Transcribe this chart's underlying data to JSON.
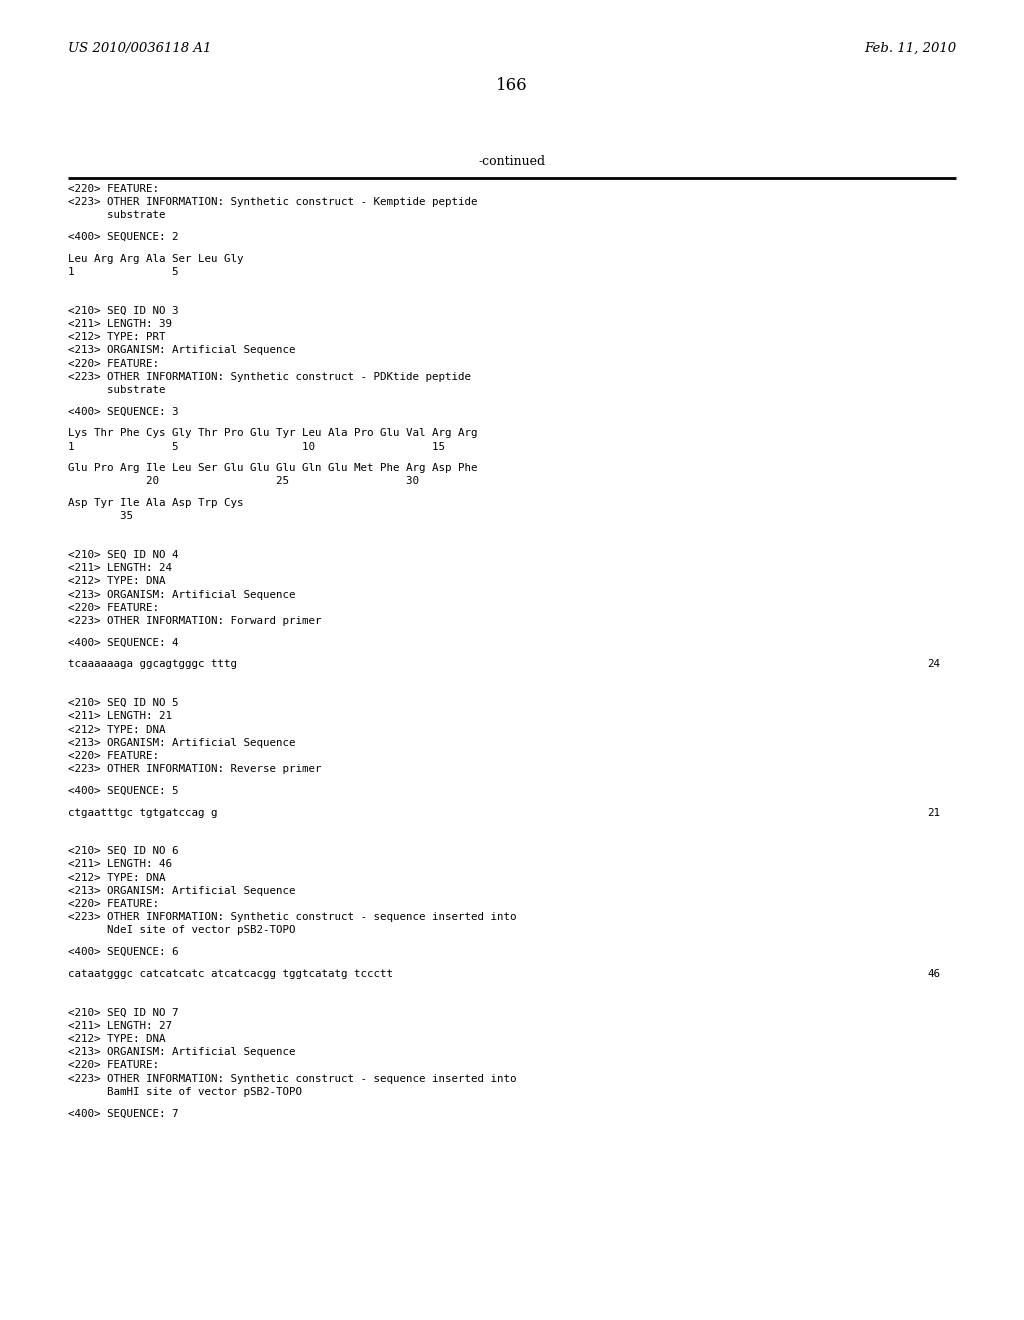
{
  "header_left": "US 2010/0036118 A1",
  "header_right": "Feb. 11, 2010",
  "page_number": "166",
  "continued_label": "-continued",
  "background_color": "#ffffff",
  "text_color": "#000000",
  "content_lines": [
    {
      "type": "mono",
      "text": "<220> FEATURE:"
    },
    {
      "type": "mono",
      "text": "<223> OTHER INFORMATION: Synthetic construct - Kemptide peptide"
    },
    {
      "type": "mono",
      "text": "      substrate"
    },
    {
      "type": "blank"
    },
    {
      "type": "mono",
      "text": "<400> SEQUENCE: 2"
    },
    {
      "type": "blank"
    },
    {
      "type": "mono",
      "text": "Leu Arg Arg Ala Ser Leu Gly"
    },
    {
      "type": "mono",
      "text": "1               5"
    },
    {
      "type": "blank"
    },
    {
      "type": "blank"
    },
    {
      "type": "blank"
    },
    {
      "type": "mono",
      "text": "<210> SEQ ID NO 3"
    },
    {
      "type": "mono",
      "text": "<211> LENGTH: 39"
    },
    {
      "type": "mono",
      "text": "<212> TYPE: PRT"
    },
    {
      "type": "mono",
      "text": "<213> ORGANISM: Artificial Sequence"
    },
    {
      "type": "mono",
      "text": "<220> FEATURE:"
    },
    {
      "type": "mono",
      "text": "<223> OTHER INFORMATION: Synthetic construct - PDKtide peptide"
    },
    {
      "type": "mono",
      "text": "      substrate"
    },
    {
      "type": "blank"
    },
    {
      "type": "mono",
      "text": "<400> SEQUENCE: 3"
    },
    {
      "type": "blank"
    },
    {
      "type": "mono",
      "text": "Lys Thr Phe Cys Gly Thr Pro Glu Tyr Leu Ala Pro Glu Val Arg Arg"
    },
    {
      "type": "mono",
      "text": "1               5                   10                  15"
    },
    {
      "type": "blank"
    },
    {
      "type": "mono",
      "text": "Glu Pro Arg Ile Leu Ser Glu Glu Glu Gln Glu Met Phe Arg Asp Phe"
    },
    {
      "type": "mono",
      "text": "            20                  25                  30"
    },
    {
      "type": "blank"
    },
    {
      "type": "mono",
      "text": "Asp Tyr Ile Ala Asp Trp Cys"
    },
    {
      "type": "mono",
      "text": "        35"
    },
    {
      "type": "blank"
    },
    {
      "type": "blank"
    },
    {
      "type": "blank"
    },
    {
      "type": "mono",
      "text": "<210> SEQ ID NO 4"
    },
    {
      "type": "mono",
      "text": "<211> LENGTH: 24"
    },
    {
      "type": "mono",
      "text": "<212> TYPE: DNA"
    },
    {
      "type": "mono",
      "text": "<213> ORGANISM: Artificial Sequence"
    },
    {
      "type": "mono",
      "text": "<220> FEATURE:"
    },
    {
      "type": "mono",
      "text": "<223> OTHER INFORMATION: Forward primer"
    },
    {
      "type": "blank"
    },
    {
      "type": "mono",
      "text": "<400> SEQUENCE: 4"
    },
    {
      "type": "blank"
    },
    {
      "type": "mono_seq",
      "text": "tcaaaaaaga ggcagtgggc tttg",
      "num": "24"
    },
    {
      "type": "blank"
    },
    {
      "type": "blank"
    },
    {
      "type": "blank"
    },
    {
      "type": "mono",
      "text": "<210> SEQ ID NO 5"
    },
    {
      "type": "mono",
      "text": "<211> LENGTH: 21"
    },
    {
      "type": "mono",
      "text": "<212> TYPE: DNA"
    },
    {
      "type": "mono",
      "text": "<213> ORGANISM: Artificial Sequence"
    },
    {
      "type": "mono",
      "text": "<220> FEATURE:"
    },
    {
      "type": "mono",
      "text": "<223> OTHER INFORMATION: Reverse primer"
    },
    {
      "type": "blank"
    },
    {
      "type": "mono",
      "text": "<400> SEQUENCE: 5"
    },
    {
      "type": "blank"
    },
    {
      "type": "mono_seq",
      "text": "ctgaatttgc tgtgatccag g",
      "num": "21"
    },
    {
      "type": "blank"
    },
    {
      "type": "blank"
    },
    {
      "type": "blank"
    },
    {
      "type": "mono",
      "text": "<210> SEQ ID NO 6"
    },
    {
      "type": "mono",
      "text": "<211> LENGTH: 46"
    },
    {
      "type": "mono",
      "text": "<212> TYPE: DNA"
    },
    {
      "type": "mono",
      "text": "<213> ORGANISM: Artificial Sequence"
    },
    {
      "type": "mono",
      "text": "<220> FEATURE:"
    },
    {
      "type": "mono",
      "text": "<223> OTHER INFORMATION: Synthetic construct - sequence inserted into"
    },
    {
      "type": "mono",
      "text": "      NdeI site of vector pSB2-TOPO"
    },
    {
      "type": "blank"
    },
    {
      "type": "mono",
      "text": "<400> SEQUENCE: 6"
    },
    {
      "type": "blank"
    },
    {
      "type": "mono_seq",
      "text": "cataatgggc catcatcatc atcatcacgg tggtcatatg tccctt",
      "num": "46"
    },
    {
      "type": "blank"
    },
    {
      "type": "blank"
    },
    {
      "type": "blank"
    },
    {
      "type": "mono",
      "text": "<210> SEQ ID NO 7"
    },
    {
      "type": "mono",
      "text": "<211> LENGTH: 27"
    },
    {
      "type": "mono",
      "text": "<212> TYPE: DNA"
    },
    {
      "type": "mono",
      "text": "<213> ORGANISM: Artificial Sequence"
    },
    {
      "type": "mono",
      "text": "<220> FEATURE:"
    },
    {
      "type": "mono",
      "text": "<223> OTHER INFORMATION: Synthetic construct - sequence inserted into"
    },
    {
      "type": "mono",
      "text": "      BamHI site of vector pSB2-TOPO"
    },
    {
      "type": "blank"
    },
    {
      "type": "mono",
      "text": "<400> SEQUENCE: 7"
    }
  ]
}
